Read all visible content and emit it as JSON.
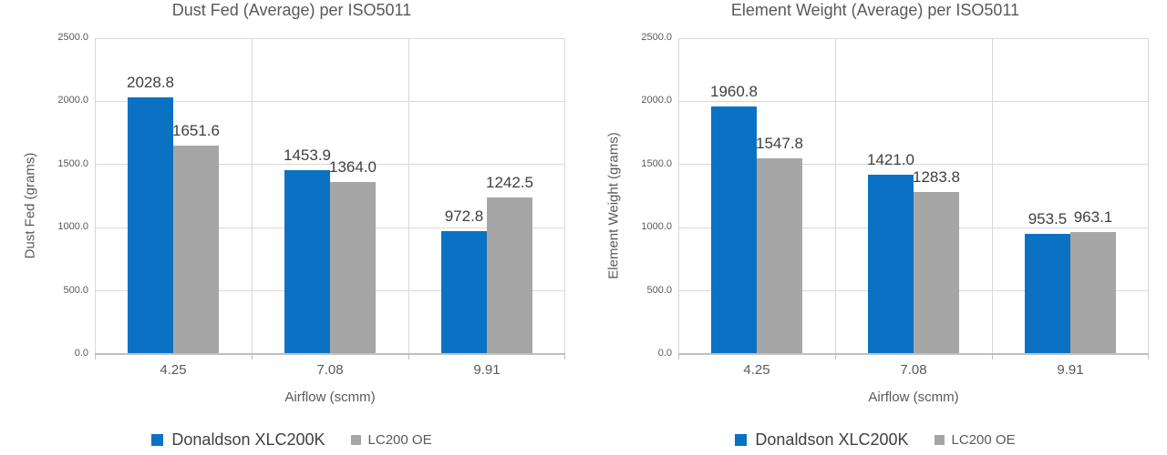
{
  "page": {
    "background": "#FFFFFF"
  },
  "colors": {
    "series_blue": "#0B72C3",
    "series_gray": "#A6A6A6",
    "gridline": "#D9D9D9",
    "axis_line": "#BFBFBF",
    "title_text": "#595959",
    "tick_text": "#595959",
    "data_label_text": "#3F3F3F"
  },
  "chart_data": [
    {
      "type": "bar",
      "title": "Dust Fed (Average) per ISO5011",
      "xlabel": "Airflow (scmm)",
      "ylabel": "Dust Fed (grams)",
      "categories": [
        "4.25",
        "7.08",
        "9.91"
      ],
      "series": [
        {
          "name": "Donaldson XLC200K",
          "color": "#0B72C3",
          "values": [
            2028.8,
            1453.9,
            972.8
          ]
        },
        {
          "name": "LC200 OE",
          "color": "#A6A6A6",
          "values": [
            1651.6,
            1364.0,
            1242.5
          ]
        }
      ],
      "ylim": [
        0,
        2500
      ],
      "ytick_step": 500,
      "ytick_labels": [
        "0.0",
        "500.0",
        "1000.0",
        "1500.0",
        "2000.0",
        "2500.0"
      ],
      "grid": true,
      "data_labels": true,
      "legend_position": "bottom"
    },
    {
      "type": "bar",
      "title": "Element Weight (Average) per ISO5011",
      "xlabel": "Airflow (scmm)",
      "ylabel": "Element Weight (grams)",
      "categories": [
        "4.25",
        "7.08",
        "9.91"
      ],
      "series": [
        {
          "name": "Donaldson XLC200K",
          "color": "#0B72C3",
          "values": [
            1960.8,
            1421.0,
            953.5
          ]
        },
        {
          "name": "LC200 OE",
          "color": "#A6A6A6",
          "values": [
            1547.8,
            1283.8,
            963.1
          ]
        }
      ],
      "ylim": [
        0,
        2500
      ],
      "ytick_step": 500,
      "ytick_labels": [
        "0.0",
        "500.0",
        "1000.0",
        "1500.0",
        "2000.0",
        "2500.0"
      ],
      "grid": true,
      "data_labels": true,
      "legend_position": "bottom"
    }
  ]
}
